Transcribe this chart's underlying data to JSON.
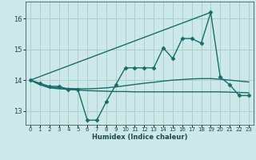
{
  "xlabel": "Humidex (Indice chaleur)",
  "background_color": "#cce8e8",
  "grid_color": "#aacfcf",
  "line_color": "#1a6b6b",
  "xlim": [
    -0.5,
    23.5
  ],
  "ylim": [
    12.55,
    16.55
  ],
  "yticks": [
    13,
    14,
    15,
    16
  ],
  "xticks": [
    0,
    1,
    2,
    3,
    4,
    5,
    6,
    7,
    8,
    9,
    10,
    11,
    12,
    13,
    14,
    15,
    16,
    17,
    18,
    19,
    20,
    21,
    22,
    23
  ],
  "series": [
    {
      "x": [
        0,
        1,
        2,
        3,
        4,
        5,
        6,
        7,
        8,
        9,
        10,
        11,
        12,
        13,
        14,
        15,
        16,
        17,
        18,
        19,
        20,
        21,
        22,
        23
      ],
      "y": [
        14.0,
        13.9,
        13.8,
        13.8,
        13.7,
        13.7,
        12.7,
        12.7,
        13.3,
        13.85,
        14.4,
        14.4,
        14.4,
        14.4,
        15.05,
        14.7,
        15.35,
        15.35,
        15.2,
        16.2,
        14.1,
        13.85,
        13.5,
        13.5
      ],
      "marker": "D",
      "markersize": 2.5,
      "linewidth": 1.0
    },
    {
      "x": [
        0,
        19
      ],
      "y": [
        14.0,
        16.2
      ],
      "marker": null,
      "markersize": 0,
      "linewidth": 1.0
    },
    {
      "x": [
        0,
        1,
        2,
        3,
        4,
        5,
        6,
        7,
        8,
        9,
        10,
        11,
        12,
        13,
        14,
        15,
        16,
        17,
        18,
        19,
        20,
        21,
        22,
        23
      ],
      "y": [
        14.0,
        13.88,
        13.78,
        13.75,
        13.73,
        13.72,
        13.72,
        13.73,
        13.75,
        13.78,
        13.82,
        13.86,
        13.9,
        13.93,
        13.97,
        14.0,
        14.02,
        14.04,
        14.05,
        14.05,
        14.03,
        14.0,
        13.97,
        13.94
      ],
      "marker": null,
      "markersize": 0,
      "linewidth": 1.0
    },
    {
      "x": [
        0,
        1,
        2,
        3,
        4,
        5,
        6,
        7,
        8,
        9,
        10,
        11,
        12,
        13,
        14,
        15,
        16,
        17,
        18,
        19,
        20,
        21,
        22,
        23
      ],
      "y": [
        14.0,
        13.85,
        13.75,
        13.72,
        13.7,
        13.68,
        13.66,
        13.65,
        13.64,
        13.63,
        13.63,
        13.62,
        13.62,
        13.62,
        13.62,
        13.62,
        13.62,
        13.62,
        13.62,
        13.62,
        13.62,
        13.61,
        13.6,
        13.59
      ],
      "marker": null,
      "markersize": 0,
      "linewidth": 1.0
    }
  ]
}
